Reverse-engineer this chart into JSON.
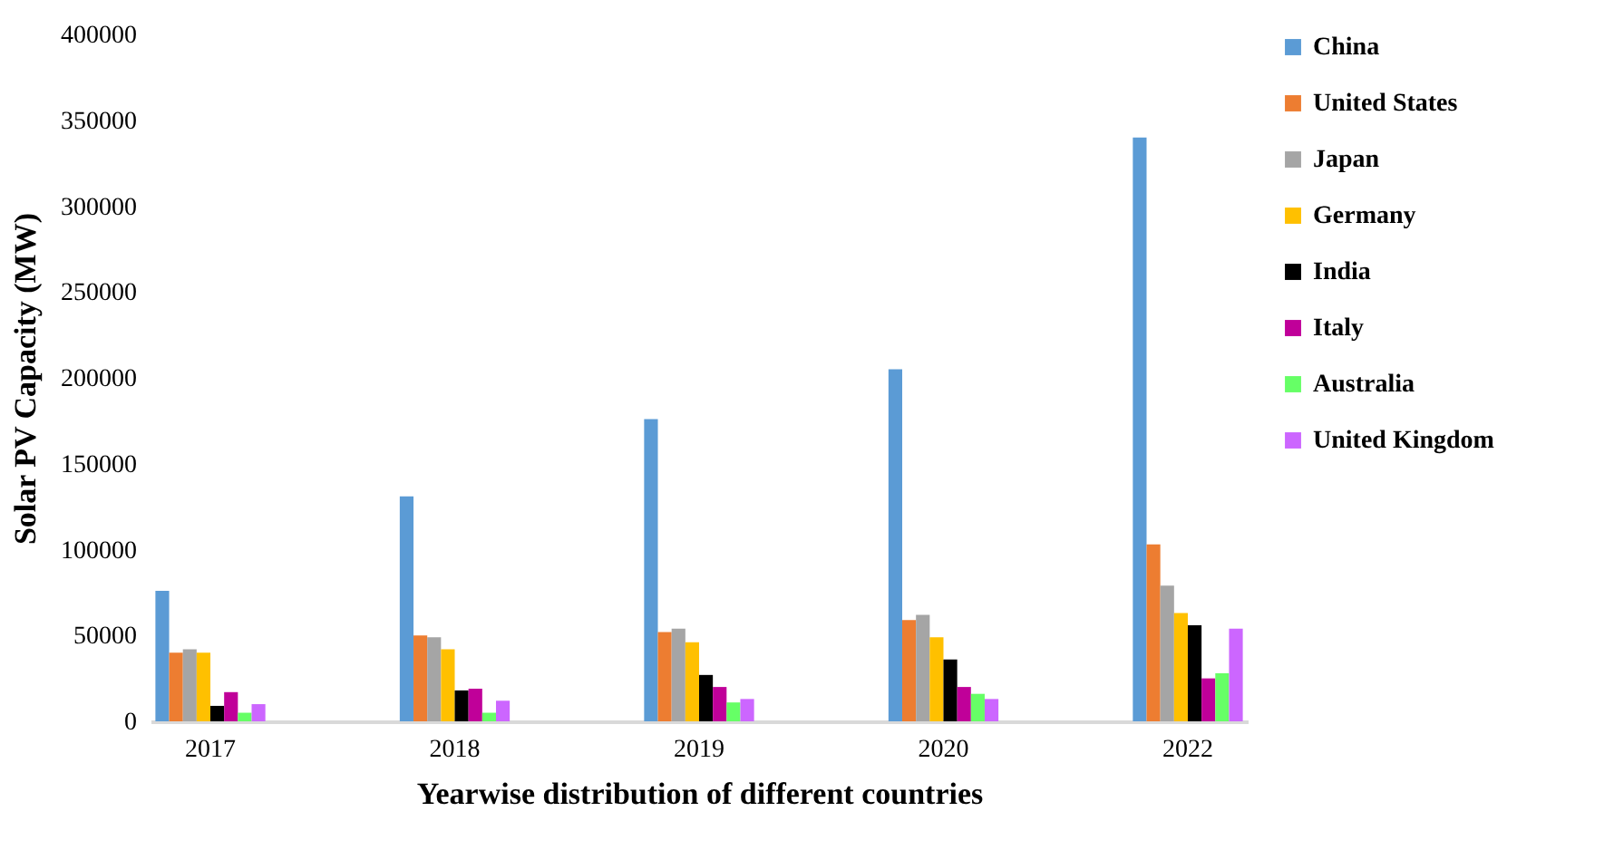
{
  "chart_data": {
    "type": "bar",
    "xlabel": "Yearwise distribution of different countries",
    "ylabel": "Solar PV Capacity (MW)",
    "categories": [
      "2017",
      "2018",
      "2019",
      "2020",
      "2022"
    ],
    "series": [
      {
        "name": "China",
        "color": "#5b9bd5",
        "values": [
          76000,
          131000,
          176000,
          205000,
          340000
        ]
      },
      {
        "name": "United States",
        "color": "#ed7d31",
        "values": [
          40000,
          50000,
          52000,
          59000,
          103000
        ]
      },
      {
        "name": "Japan",
        "color": "#a5a5a5",
        "values": [
          42000,
          49000,
          54000,
          62000,
          79000
        ]
      },
      {
        "name": "Germany",
        "color": "#ffc000",
        "values": [
          40000,
          42000,
          46000,
          49000,
          63000
        ]
      },
      {
        "name": "India",
        "color": "#000000",
        "values": [
          9000,
          18000,
          27000,
          36000,
          56000
        ]
      },
      {
        "name": "Italy",
        "color": "#c00099",
        "values": [
          17000,
          19000,
          20000,
          20000,
          25000
        ]
      },
      {
        "name": "Australia",
        "color": "#66ff66",
        "values": [
          5000,
          5000,
          11000,
          16000,
          28000
        ]
      },
      {
        "name": "United Kingdom",
        "color": "#cc66ff",
        "values": [
          10000,
          12000,
          13000,
          13000,
          54000
        ]
      }
    ],
    "ylim": [
      0,
      400000
    ],
    "yticks": [
      0,
      50000,
      100000,
      150000,
      200000,
      250000,
      300000,
      350000,
      400000
    ],
    "grid": false,
    "legend": "right"
  }
}
